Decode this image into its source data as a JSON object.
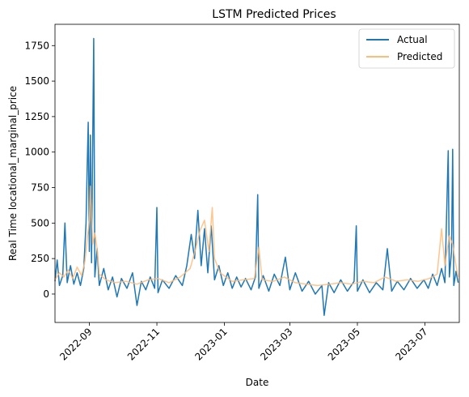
{
  "chart_data": {
    "type": "line",
    "title": "LSTM Predicted Prices",
    "xlabel": "Date",
    "ylabel": "Real Time locational_marginal_price",
    "x_range": [
      "2022-08-01",
      "2023-08-01"
    ],
    "ylim": [
      -200,
      1900
    ],
    "x_ticks": [
      "2022-09",
      "2022-11",
      "2023-01",
      "2023-03",
      "2023-05",
      "2023-07"
    ],
    "y_ticks": [
      0,
      250,
      500,
      750,
      1000,
      1250,
      1500,
      1750
    ],
    "grid": false,
    "legend_position": "top-right",
    "series": [
      {
        "name": "Actual",
        "color": "#1f77b4",
        "points": [
          [
            "2022-08-01",
            90
          ],
          [
            "2022-08-03",
            240
          ],
          [
            "2022-08-05",
            60
          ],
          [
            "2022-08-08",
            130
          ],
          [
            "2022-08-10",
            500
          ],
          [
            "2022-08-12",
            80
          ],
          [
            "2022-08-15",
            200
          ],
          [
            "2022-08-18",
            70
          ],
          [
            "2022-08-21",
            150
          ],
          [
            "2022-08-24",
            60
          ],
          [
            "2022-08-27",
            180
          ],
          [
            "2022-08-29",
            500
          ],
          [
            "2022-08-30",
            860
          ],
          [
            "2022-08-31",
            1210
          ],
          [
            "2022-09-01",
            300
          ],
          [
            "2022-09-02",
            1120
          ],
          [
            "2022-09-03",
            220
          ],
          [
            "2022-09-05",
            1800
          ],
          [
            "2022-09-06",
            120
          ],
          [
            "2022-09-08",
            320
          ],
          [
            "2022-09-10",
            60
          ],
          [
            "2022-09-14",
            180
          ],
          [
            "2022-09-18",
            30
          ],
          [
            "2022-09-22",
            120
          ],
          [
            "2022-09-26",
            -20
          ],
          [
            "2022-09-30",
            110
          ],
          [
            "2022-10-05",
            40
          ],
          [
            "2022-10-10",
            150
          ],
          [
            "2022-10-14",
            -80
          ],
          [
            "2022-10-18",
            90
          ],
          [
            "2022-10-22",
            30
          ],
          [
            "2022-10-26",
            120
          ],
          [
            "2022-10-30",
            40
          ],
          [
            "2022-11-01",
            610
          ],
          [
            "2022-11-02",
            10
          ],
          [
            "2022-11-06",
            100
          ],
          [
            "2022-11-12",
            40
          ],
          [
            "2022-11-18",
            130
          ],
          [
            "2022-11-24",
            60
          ],
          [
            "2022-11-28",
            200
          ],
          [
            "2022-12-02",
            420
          ],
          [
            "2022-12-05",
            250
          ],
          [
            "2022-12-08",
            590
          ],
          [
            "2022-12-11",
            200
          ],
          [
            "2022-12-14",
            460
          ],
          [
            "2022-12-17",
            150
          ],
          [
            "2022-12-20",
            480
          ],
          [
            "2022-12-23",
            100
          ],
          [
            "2022-12-27",
            200
          ],
          [
            "2022-12-31",
            60
          ],
          [
            "2023-01-04",
            150
          ],
          [
            "2023-01-08",
            40
          ],
          [
            "2023-01-12",
            120
          ],
          [
            "2023-01-16",
            50
          ],
          [
            "2023-01-20",
            110
          ],
          [
            "2023-01-25",
            30
          ],
          [
            "2023-01-29",
            120
          ],
          [
            "2023-01-31",
            700
          ],
          [
            "2023-02-01",
            40
          ],
          [
            "2023-02-05",
            130
          ],
          [
            "2023-02-10",
            20
          ],
          [
            "2023-02-15",
            140
          ],
          [
            "2023-02-20",
            60
          ],
          [
            "2023-02-25",
            260
          ],
          [
            "2023-03-01",
            30
          ],
          [
            "2023-03-06",
            150
          ],
          [
            "2023-03-12",
            20
          ],
          [
            "2023-03-18",
            90
          ],
          [
            "2023-03-24",
            0
          ],
          [
            "2023-03-30",
            60
          ],
          [
            "2023-04-01",
            -150
          ],
          [
            "2023-04-05",
            80
          ],
          [
            "2023-04-10",
            10
          ],
          [
            "2023-04-16",
            100
          ],
          [
            "2023-04-22",
            20
          ],
          [
            "2023-04-28",
            90
          ],
          [
            "2023-04-30",
            480
          ],
          [
            "2023-05-01",
            20
          ],
          [
            "2023-05-06",
            100
          ],
          [
            "2023-05-12",
            10
          ],
          [
            "2023-05-18",
            80
          ],
          [
            "2023-05-24",
            30
          ],
          [
            "2023-05-28",
            320
          ],
          [
            "2023-06-01",
            20
          ],
          [
            "2023-06-06",
            90
          ],
          [
            "2023-06-12",
            30
          ],
          [
            "2023-06-18",
            110
          ],
          [
            "2023-06-24",
            40
          ],
          [
            "2023-06-30",
            100
          ],
          [
            "2023-07-04",
            40
          ],
          [
            "2023-07-08",
            140
          ],
          [
            "2023-07-12",
            60
          ],
          [
            "2023-07-16",
            180
          ],
          [
            "2023-07-19",
            80
          ],
          [
            "2023-07-22",
            1010
          ],
          [
            "2023-07-23",
            120
          ],
          [
            "2023-07-25",
            300
          ],
          [
            "2023-07-26",
            1020
          ],
          [
            "2023-07-27",
            60
          ],
          [
            "2023-07-29",
            160
          ],
          [
            "2023-07-31",
            80
          ]
        ]
      },
      {
        "name": "Predicted",
        "color": "#ffbb78",
        "points": [
          [
            "2022-08-01",
            100
          ],
          [
            "2022-08-05",
            150
          ],
          [
            "2022-08-09",
            120
          ],
          [
            "2022-08-13",
            170
          ],
          [
            "2022-08-17",
            110
          ],
          [
            "2022-08-21",
            190
          ],
          [
            "2022-08-25",
            130
          ],
          [
            "2022-08-28",
            230
          ],
          [
            "2022-08-30",
            380
          ],
          [
            "2022-09-01",
            520
          ],
          [
            "2022-09-02",
            760
          ],
          [
            "2022-09-04",
            350
          ],
          [
            "2022-09-06",
            430
          ],
          [
            "2022-09-08",
            320
          ],
          [
            "2022-09-10",
            140
          ],
          [
            "2022-09-16",
            100
          ],
          [
            "2022-09-24",
            80
          ],
          [
            "2022-10-04",
            90
          ],
          [
            "2022-10-14",
            70
          ],
          [
            "2022-10-24",
            100
          ],
          [
            "2022-11-02",
            110
          ],
          [
            "2022-11-12",
            80
          ],
          [
            "2022-11-22",
            120
          ],
          [
            "2022-12-01",
            180
          ],
          [
            "2022-12-06",
            320
          ],
          [
            "2022-12-10",
            450
          ],
          [
            "2022-12-14",
            520
          ],
          [
            "2022-12-18",
            300
          ],
          [
            "2022-12-21",
            610
          ],
          [
            "2022-12-23",
            250
          ],
          [
            "2022-12-28",
            150
          ],
          [
            "2023-01-08",
            90
          ],
          [
            "2023-01-18",
            100
          ],
          [
            "2023-01-28",
            110
          ],
          [
            "2023-02-01",
            330
          ],
          [
            "2023-02-04",
            100
          ],
          [
            "2023-02-14",
            90
          ],
          [
            "2023-02-24",
            120
          ],
          [
            "2023-03-06",
            80
          ],
          [
            "2023-03-16",
            70
          ],
          [
            "2023-03-26",
            60
          ],
          [
            "2023-04-06",
            70
          ],
          [
            "2023-04-16",
            80
          ],
          [
            "2023-04-26",
            70
          ],
          [
            "2023-05-06",
            90
          ],
          [
            "2023-05-16",
            80
          ],
          [
            "2023-05-26",
            120
          ],
          [
            "2023-06-05",
            90
          ],
          [
            "2023-06-15",
            100
          ],
          [
            "2023-06-25",
            90
          ],
          [
            "2023-07-05",
            110
          ],
          [
            "2023-07-12",
            140
          ],
          [
            "2023-07-16",
            460
          ],
          [
            "2023-07-19",
            200
          ],
          [
            "2023-07-23",
            410
          ],
          [
            "2023-07-26",
            350
          ],
          [
            "2023-07-29",
            200
          ],
          [
            "2023-07-31",
            120
          ]
        ]
      }
    ]
  }
}
